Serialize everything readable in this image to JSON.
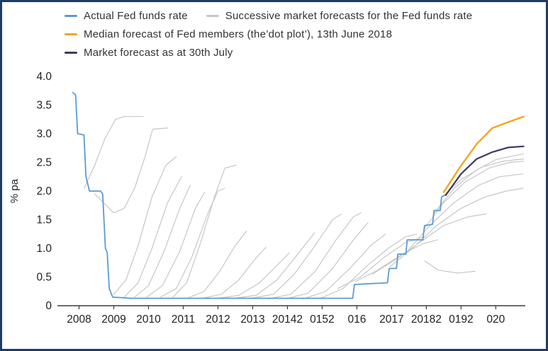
{
  "frame": {
    "border_color": "#1f3b67",
    "background": "#ffffff"
  },
  "legend": {
    "items": [
      {
        "label": "Actual Fed funds rate",
        "color": "#5b9bd5"
      },
      {
        "label": "Successive market forecasts for the Fed funds rate",
        "color": "#c7c7c7"
      },
      {
        "label": "Median forecast of Fed members (the’dot plot’), 13th June 2018",
        "color": "#f5a41f"
      },
      {
        "label": "Market forecast as at 30th July",
        "color": "#3e3a5f"
      }
    ]
  },
  "chart_data": {
    "type": "line",
    "title": "",
    "xlabel": "",
    "ylabel": "% pa",
    "ylim": [
      0,
      4.0
    ],
    "xlim": [
      2007.5,
      2020.85
    ],
    "grid": false,
    "legend_position": "top-left",
    "yticks": [
      0,
      0.5,
      1.0,
      1.5,
      2.0,
      2.5,
      3.0,
      3.5,
      4.0
    ],
    "ytick_labels": [
      "0",
      "0.5",
      "1.0",
      "1.5",
      "2.0",
      "2.5",
      "3.0",
      "3.5",
      "4.0"
    ],
    "xticks": [
      2008,
      2009,
      2010,
      2011,
      2012,
      2013,
      2014,
      2015,
      2016,
      2017,
      2018,
      2019,
      2020
    ],
    "xtick_labels": [
      "2008",
      "2009",
      "2010",
      "2011",
      "2012",
      "2013",
      "20142",
      "0152",
      "016",
      "2017",
      "20182",
      "0192",
      "020"
    ],
    "series": [
      {
        "name": "Successive market forecasts for the Fed funds rate",
        "role": "forecast-fan",
        "color": "#c7c7c7",
        "width": 1.2,
        "lines": [
          [
            [
              2008.15,
              2.05
            ],
            [
              2008.45,
              2.45
            ],
            [
              2008.75,
              2.92
            ],
            [
              2009.05,
              3.25
            ],
            [
              2009.3,
              3.3
            ],
            [
              2009.85,
              3.3
            ]
          ],
          [
            [
              2008.45,
              1.95
            ],
            [
              2008.7,
              1.8
            ],
            [
              2009.0,
              1.62
            ],
            [
              2009.3,
              1.7
            ],
            [
              2009.6,
              2.05
            ],
            [
              2009.9,
              2.6
            ],
            [
              2010.12,
              3.08
            ],
            [
              2010.55,
              3.1
            ]
          ],
          [
            [
              2009.0,
              0.2
            ],
            [
              2009.35,
              0.45
            ],
            [
              2009.7,
              1.05
            ],
            [
              2010.1,
              1.9
            ],
            [
              2010.5,
              2.45
            ],
            [
              2010.8,
              2.6
            ]
          ],
          [
            [
              2009.3,
              0.15
            ],
            [
              2009.7,
              0.4
            ],
            [
              2010.1,
              1.0
            ],
            [
              2010.55,
              1.8
            ],
            [
              2010.95,
              2.25
            ]
          ],
          [
            [
              2009.6,
              0.15
            ],
            [
              2010.0,
              0.35
            ],
            [
              2010.45,
              0.95
            ],
            [
              2010.9,
              1.7
            ],
            [
              2011.2,
              2.1
            ]
          ],
          [
            [
              2009.95,
              0.15
            ],
            [
              2010.4,
              0.35
            ],
            [
              2010.9,
              0.95
            ],
            [
              2011.35,
              1.7
            ],
            [
              2011.62,
              1.98
            ]
          ],
          [
            [
              2010.35,
              0.15
            ],
            [
              2010.8,
              0.3
            ],
            [
              2011.25,
              0.85
            ],
            [
              2011.7,
              1.6
            ],
            [
              2012.0,
              2.0
            ],
            [
              2012.2,
              2.05
            ]
          ],
          [
            [
              2010.7,
              0.15
            ],
            [
              2011.1,
              0.4
            ],
            [
              2011.5,
              1.1
            ],
            [
              2011.9,
              1.9
            ],
            [
              2012.2,
              2.4
            ],
            [
              2012.52,
              2.45
            ]
          ],
          [
            [
              2011.15,
              0.14
            ],
            [
              2011.6,
              0.25
            ],
            [
              2012.05,
              0.6
            ],
            [
              2012.5,
              1.05
            ],
            [
              2012.82,
              1.3
            ]
          ],
          [
            [
              2011.55,
              0.13
            ],
            [
              2012.1,
              0.2
            ],
            [
              2012.6,
              0.45
            ],
            [
              2013.05,
              0.8
            ],
            [
              2013.38,
              1.02
            ]
          ],
          [
            [
              2012.0,
              0.13
            ],
            [
              2012.6,
              0.18
            ],
            [
              2013.2,
              0.4
            ],
            [
              2013.7,
              0.7
            ],
            [
              2014.05,
              0.92
            ]
          ],
          [
            [
              2012.45,
              0.13
            ],
            [
              2013.1,
              0.18
            ],
            [
              2013.7,
              0.45
            ],
            [
              2014.3,
              0.9
            ],
            [
              2014.78,
              1.27
            ]
          ],
          [
            [
              2012.95,
              0.13
            ],
            [
              2013.6,
              0.2
            ],
            [
              2014.2,
              0.55
            ],
            [
              2014.8,
              1.05
            ],
            [
              2015.3,
              1.5
            ],
            [
              2015.55,
              1.6
            ]
          ],
          [
            [
              2013.45,
              0.12
            ],
            [
              2014.1,
              0.2
            ],
            [
              2014.8,
              0.6
            ],
            [
              2015.4,
              1.15
            ],
            [
              2015.9,
              1.55
            ],
            [
              2016.12,
              1.62
            ]
          ],
          [
            [
              2013.95,
              0.12
            ],
            [
              2014.6,
              0.22
            ],
            [
              2015.3,
              0.65
            ],
            [
              2015.9,
              1.15
            ],
            [
              2016.32,
              1.45
            ]
          ],
          [
            [
              2014.45,
              0.12
            ],
            [
              2015.1,
              0.25
            ],
            [
              2015.8,
              0.65
            ],
            [
              2016.4,
              1.05
            ],
            [
              2016.82,
              1.25
            ]
          ],
          [
            [
              2014.95,
              0.13
            ],
            [
              2015.6,
              0.3
            ],
            [
              2016.3,
              0.7
            ],
            [
              2016.9,
              1.0
            ],
            [
              2017.4,
              1.2
            ],
            [
              2017.72,
              1.25
            ]
          ],
          [
            [
              2015.45,
              0.3
            ],
            [
              2016.1,
              0.5
            ],
            [
              2016.8,
              0.85
            ],
            [
              2017.4,
              1.1
            ],
            [
              2017.92,
              1.2
            ]
          ],
          [
            [
              2015.95,
              0.42
            ],
            [
              2016.6,
              0.62
            ],
            [
              2017.3,
              0.9
            ],
            [
              2017.9,
              1.08
            ],
            [
              2018.32,
              1.15
            ]
          ],
          [
            [
              2016.45,
              0.55
            ],
            [
              2017.1,
              0.8
            ],
            [
              2017.8,
              1.1
            ],
            [
              2018.5,
              1.4
            ],
            [
              2019.2,
              1.55
            ],
            [
              2019.72,
              1.6
            ]
          ],
          [
            [
              2016.95,
              0.68
            ],
            [
              2017.6,
              1.0
            ],
            [
              2018.3,
              1.4
            ],
            [
              2019.0,
              1.7
            ],
            [
              2019.7,
              1.9
            ],
            [
              2020.3,
              2.0
            ],
            [
              2020.78,
              2.05
            ]
          ],
          [
            [
              2017.45,
              0.95
            ],
            [
              2018.1,
              1.4
            ],
            [
              2018.8,
              1.8
            ],
            [
              2019.5,
              2.1
            ],
            [
              2020.1,
              2.25
            ],
            [
              2020.78,
              2.3
            ]
          ],
          [
            [
              2017.95,
              1.35
            ],
            [
              2018.5,
              1.8
            ],
            [
              2019.1,
              2.15
            ],
            [
              2019.8,
              2.4
            ],
            [
              2020.4,
              2.5
            ],
            [
              2020.8,
              2.52
            ]
          ],
          [
            [
              2018.2,
              1.6
            ],
            [
              2018.8,
              2.05
            ],
            [
              2019.4,
              2.35
            ],
            [
              2020.0,
              2.55
            ],
            [
              2020.8,
              2.65
            ]
          ],
          [
            [
              2018.45,
              1.9
            ],
            [
              2019.0,
              2.2
            ],
            [
              2019.6,
              2.42
            ],
            [
              2020.2,
              2.52
            ],
            [
              2020.8,
              2.56
            ]
          ],
          [
            [
              2017.95,
              0.78
            ],
            [
              2018.35,
              0.62
            ],
            [
              2018.9,
              0.57
            ],
            [
              2019.4,
              0.6
            ]
          ]
        ]
      },
      {
        "name": "Actual Fed funds rate",
        "role": "actual-fed-funds-rate",
        "color": "#5b9bd5",
        "width": 1.8,
        "points": [
          [
            2007.82,
            3.72
          ],
          [
            2007.9,
            3.68
          ],
          [
            2007.96,
            3.0
          ],
          [
            2008.14,
            2.98
          ],
          [
            2008.2,
            2.25
          ],
          [
            2008.3,
            2.0
          ],
          [
            2008.62,
            2.0
          ],
          [
            2008.68,
            1.95
          ],
          [
            2008.76,
            1.0
          ],
          [
            2008.81,
            0.93
          ],
          [
            2008.87,
            0.3
          ],
          [
            2008.97,
            0.15
          ],
          [
            2009.5,
            0.13
          ],
          [
            2012.0,
            0.13
          ],
          [
            2015.88,
            0.13
          ],
          [
            2015.93,
            0.37
          ],
          [
            2016.88,
            0.4
          ],
          [
            2016.93,
            0.65
          ],
          [
            2017.14,
            0.65
          ],
          [
            2017.18,
            0.9
          ],
          [
            2017.41,
            0.9
          ],
          [
            2017.45,
            1.15
          ],
          [
            2017.9,
            1.15
          ],
          [
            2017.95,
            1.4
          ],
          [
            2018.18,
            1.42
          ],
          [
            2018.22,
            1.66
          ],
          [
            2018.4,
            1.66
          ],
          [
            2018.44,
            1.9
          ],
          [
            2018.56,
            1.93
          ]
        ]
      },
      {
        "name": "Median forecast of Fed members (the’dot plot’), 13th June 2018",
        "role": "fed-dot-plot-median",
        "color": "#f5a41f",
        "width": 2.4,
        "points": [
          [
            2018.5,
            1.98
          ],
          [
            2018.95,
            2.4
          ],
          [
            2019.45,
            2.82
          ],
          [
            2019.9,
            3.1
          ],
          [
            2020.35,
            3.2
          ],
          [
            2020.8,
            3.3
          ]
        ]
      },
      {
        "name": "Market forecast as at 30th July",
        "role": "market-forecast-30-july",
        "color": "#3e3a5f",
        "width": 2.2,
        "points": [
          [
            2018.56,
            1.93
          ],
          [
            2019.0,
            2.3
          ],
          [
            2019.45,
            2.56
          ],
          [
            2019.9,
            2.68
          ],
          [
            2020.35,
            2.76
          ],
          [
            2020.8,
            2.78
          ]
        ]
      }
    ]
  }
}
